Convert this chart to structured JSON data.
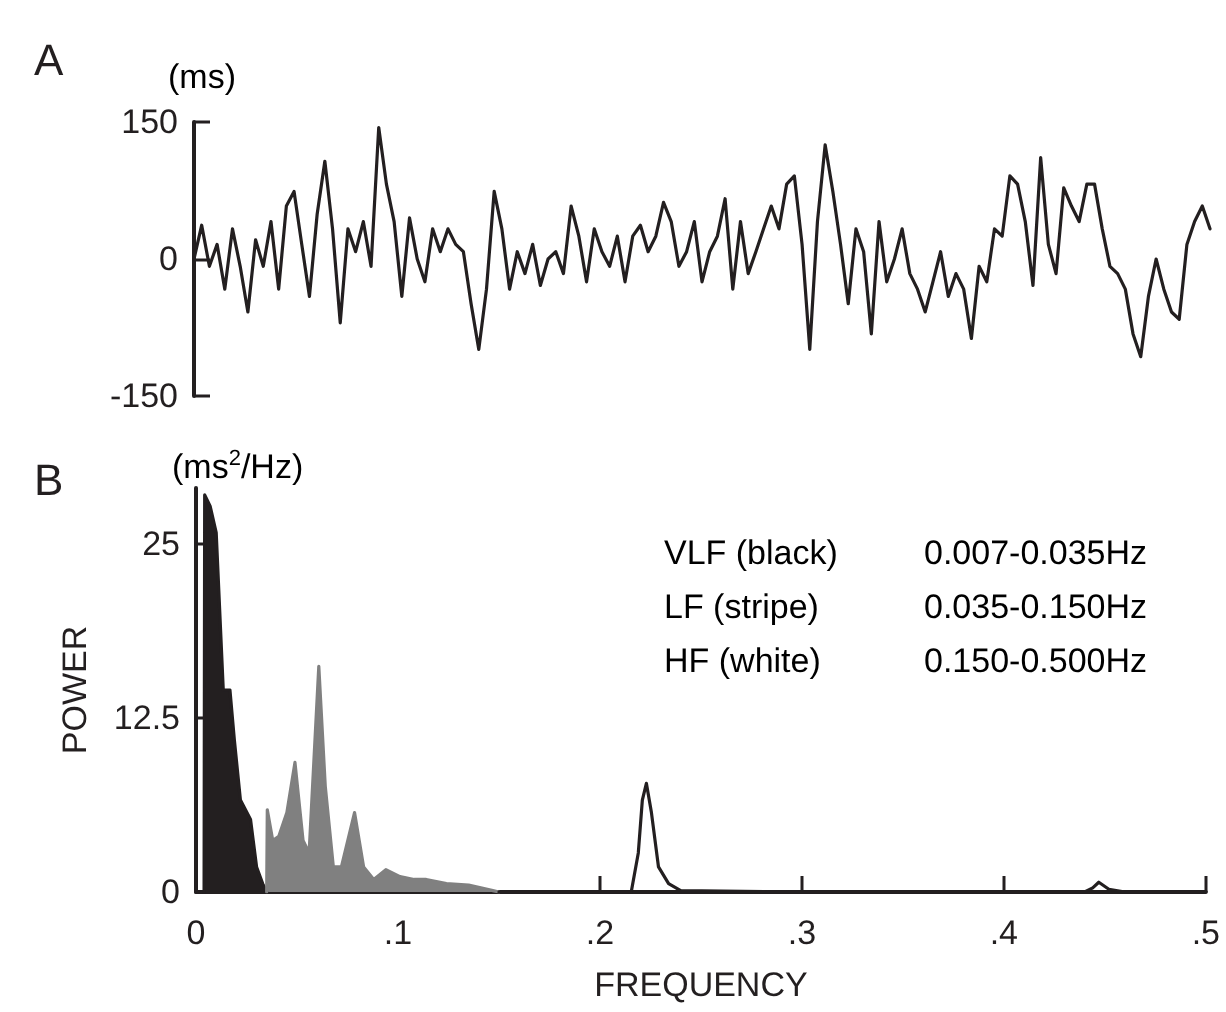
{
  "chart_data": [
    {
      "type": "line",
      "title": "A",
      "ylabel": "(ms)",
      "ylim": [
        -150,
        150
      ],
      "yticks": [
        -150,
        0,
        150
      ],
      "tick_labels": "y",
      "marker": "none",
      "line_style": "solid",
      "categories": [
        null,
        null,
        null,
        null,
        null,
        null,
        null,
        null,
        null,
        null,
        null,
        null,
        null,
        null,
        null,
        null,
        null,
        null,
        null,
        null,
        null,
        null,
        null,
        null,
        null,
        null,
        null,
        null,
        null,
        null,
        null,
        null,
        null,
        null,
        null,
        null,
        null,
        null,
        null,
        null,
        null,
        null,
        null,
        null,
        null,
        null,
        null,
        null,
        null,
        null,
        null,
        null,
        null,
        null,
        null,
        null,
        null,
        null,
        null,
        null,
        null,
        null,
        null,
        null,
        null,
        null,
        null,
        null,
        null,
        null,
        null,
        null,
        null,
        null,
        null,
        null,
        null,
        null,
        null,
        null,
        null,
        null,
        null,
        null,
        null,
        null,
        null,
        null,
        null,
        null,
        null,
        null,
        null,
        null,
        null,
        null,
        null,
        null,
        null,
        null,
        null,
        null,
        null,
        null,
        null,
        null,
        null,
        null,
        null,
        null,
        null,
        null,
        null,
        null,
        null,
        null,
        null,
        null,
        null,
        null,
        null,
        null,
        null,
        null,
        null,
        null,
        null,
        null,
        null,
        null,
        null,
        null,
        null
      ],
      "series": [
        {
          "color": "#231f20",
          "values": [
            0,
            37,
            -8,
            16,
            -33,
            33,
            -8,
            -58,
            21,
            -8,
            41,
            -33,
            58,
            74,
            16,
            -41,
            49,
            107,
            33,
            -70,
            33,
            8,
            41,
            -8,
            144,
            82,
            41,
            -41,
            45,
            0,
            -25,
            33,
            8,
            33,
            16,
            8,
            -49,
            -99,
            -33,
            74,
            33,
            -33,
            8,
            -16,
            16,
            -29,
            0,
            8,
            -16,
            58,
            25,
            -25,
            33,
            8,
            -8,
            25,
            -25,
            25,
            37,
            8,
            25,
            62,
            41,
            -8,
            8,
            41,
            -25,
            8,
            25,
            66,
            -33,
            41,
            -16,
            8,
            33,
            58,
            33,
            82,
            91,
            16,
            -99,
            41,
            125,
            74,
            16,
            -49,
            33,
            8,
            -82,
            41,
            -25,
            0,
            33,
            -16,
            -33,
            -58,
            -25,
            8,
            -41,
            -16,
            -33,
            -87,
            -8,
            -25,
            33,
            25,
            91,
            82,
            41,
            -29,
            111,
            16,
            -16,
            78,
            58,
            41,
            82,
            82,
            33,
            -8,
            -16,
            -33,
            -82,
            -107,
            -41,
            0,
            -33,
            -58,
            -66,
            16,
            41,
            58,
            33
          ]
        }
      ]
    },
    {
      "type": "area",
      "title": "B",
      "subtitle": "(ms$^{2}$/Hz)",
      "ylabel": "POWER",
      "xlabel": "FREQUENCY",
      "xlim": [
        0,
        0.5
      ],
      "xticks": [
        0,
        {
          "value": 0.1,
          "label": ".1"
        },
        {
          "value": 0.2,
          "label": ".2"
        },
        {
          "value": 0.3,
          "label": ".3"
        },
        {
          "value": 0.4,
          "label": ".4"
        },
        {
          "value": 0.5,
          "label": ".5"
        }
      ],
      "ylim": [
        0,
        29
      ],
      "yticks": [
        0,
        12.5,
        25
      ],
      "marker": "none",
      "line_style": "solid",
      "annotations": [
        "VLF (black)",
        "0.007-0.035Hz",
        "LF (stripe)",
        "0.035-0.150Hz",
        "HF (white)",
        "0.150-0.500Hz"
      ],
      "series": [
        {
          "color": "#231f20",
          "x": [
            0.004,
            0.0043,
            0.007,
            0.01,
            0.0135,
            0.0168,
            0.019,
            0.022,
            0.027,
            0.03,
            0.033,
            0.035
          ],
          "values": [
            0,
            28.5,
            27.7,
            25.8,
            14.5,
            14.5,
            10.9,
            6.6,
            5.2,
            1.8,
            0.6,
            0
          ]
        },
        {
          "color": "#808080",
          "x": [
            0.035,
            0.0353,
            0.038,
            0.041,
            0.045,
            0.049,
            0.053,
            0.056,
            0.0608,
            0.064,
            0.068,
            0.072,
            0.0785,
            0.083,
            0.088,
            0.094,
            0.101,
            0.108,
            0.114,
            0.124,
            0.135,
            0.147,
            0.15
          ],
          "values": [
            0,
            5.9,
            3.7,
            4.0,
            5.7,
            9.3,
            3.7,
            2.8,
            16.2,
            7.6,
            1.8,
            1.8,
            5.7,
            1.8,
            0.9,
            1.6,
            1.1,
            0.9,
            0.9,
            0.6,
            0.5,
            0.1,
            0
          ]
        },
        {
          "type": "line",
          "color": "#231f20",
          "x": [
            0.15,
            0.2155,
            0.219,
            0.221,
            0.223,
            0.2255,
            0.229,
            0.234,
            0.24,
            0.3,
            0.44,
            0.444,
            0.447,
            0.452,
            0.46,
            0.5
          ],
          "values": [
            0,
            0,
            2.8,
            6.6,
            7.8,
            5.7,
            1.8,
            0.6,
            0.1,
            0,
            0,
            0.3,
            0.7,
            0.2,
            0,
            0
          ]
        }
      ]
    }
  ]
}
